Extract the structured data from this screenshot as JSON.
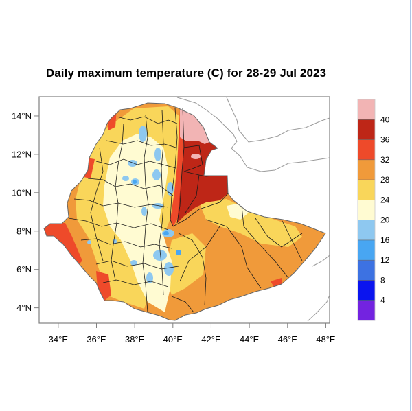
{
  "title": "Daily maximum temperature (C) for 28-29 Jul 2023",
  "map": {
    "region": "Ethiopia",
    "lat_ticks": [
      "14°N",
      "12°N",
      "10°N",
      "8°N",
      "6°N",
      "4°N"
    ],
    "lon_ticks": [
      "34°E",
      "36°E",
      "38°E",
      "40°E",
      "42°E",
      "44°E",
      "46°E",
      "48°E"
    ],
    "lat_values": [
      14,
      12,
      10,
      8,
      6,
      4
    ],
    "lon_values": [
      34,
      36,
      38,
      40,
      42,
      44,
      46,
      48
    ],
    "lat_range": [
      3.2,
      15.0
    ],
    "lon_range": [
      33.0,
      48.2
    ]
  },
  "colorbar": {
    "units": "C",
    "labels": [
      "40",
      "36",
      "32",
      "28",
      "24",
      "20",
      "16",
      "12",
      "8",
      "4"
    ],
    "bins": [
      {
        "range": ">40",
        "color": "#f2b4b4"
      },
      {
        "range": "36-40",
        "color": "#be2617"
      },
      {
        "range": "32-36",
        "color": "#ee4a2a"
      },
      {
        "range": "28-32",
        "color": "#f09a3a"
      },
      {
        "range": "24-28",
        "color": "#f9d65a"
      },
      {
        "range": "20-24",
        "color": "#fffbd2"
      },
      {
        "range": "16-20",
        "color": "#8ec8f0"
      },
      {
        "range": "12-16",
        "color": "#48a6f2"
      },
      {
        "range": "8-12",
        "color": "#3d72e2"
      },
      {
        "range": "4-8",
        "color": "#0a14ef"
      },
      {
        "range": "<4",
        "color": "#7323e0"
      }
    ]
  }
}
